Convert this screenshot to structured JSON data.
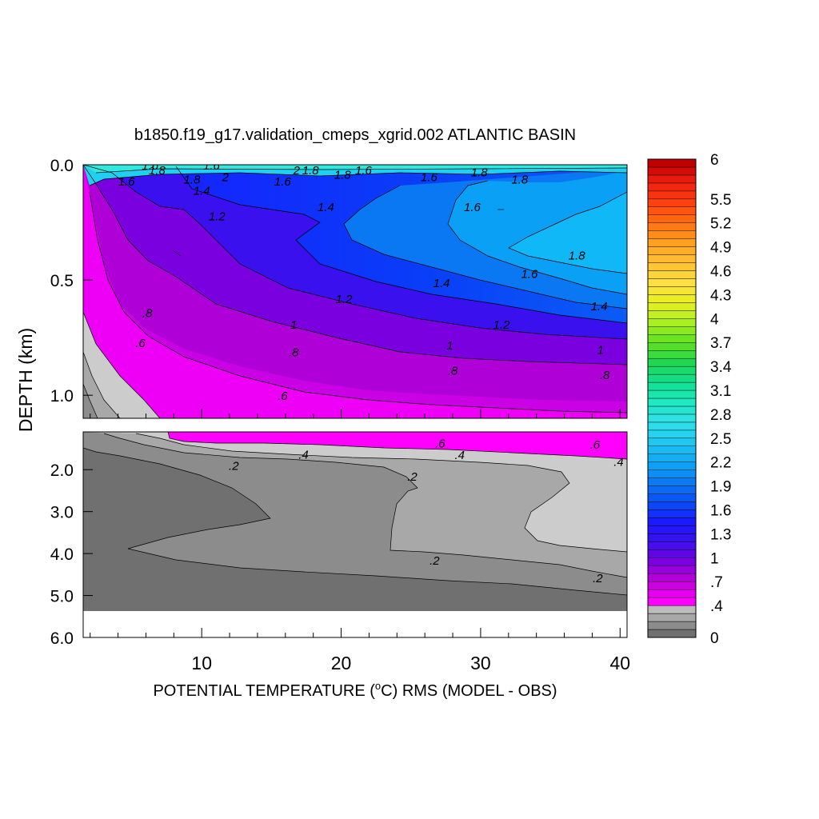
{
  "chart_data": {
    "type": "heatmap",
    "title": "b1850.f19_g17.validation_cmeps_xgrid.002 ATLANTIC BASIN",
    "xlabel_main": "POTENTIAL TEMPERATURE (",
    "xlabel_sup": "o",
    "xlabel_end": "C) RMS (MODEL - OBS)",
    "ylabel": "DEPTH (km)",
    "x_ticks": [
      "10",
      "20",
      "30",
      "40"
    ],
    "x_tick_values": [
      10,
      20,
      30,
      40
    ],
    "xlim": [
      1.5,
      40.5
    ],
    "upper_panel": {
      "ylim": [
        0.0,
        1.1
      ],
      "y_ticks": [
        "0.0",
        "0.5",
        "1.0"
      ],
      "y_tick_values": [
        0.0,
        0.5,
        1.0
      ]
    },
    "lower_panel": {
      "ylim": [
        1.1,
        6.0
      ],
      "y_ticks": [
        "2.0",
        "3.0",
        "4.0",
        "5.0",
        "6.0"
      ],
      "y_tick_values": [
        2.0,
        3.0,
        4.0,
        5.0,
        6.0
      ]
    },
    "colorbar": {
      "labels": [
        "6",
        "5.5",
        "5.2",
        "4.9",
        "4.6",
        "4.3",
        "4",
        "3.7",
        "3.4",
        "3.1",
        "2.8",
        "2.5",
        "2.2",
        "1.9",
        "1.6",
        "1.3",
        "1",
        ".7",
        ".4",
        "0"
      ],
      "label_values": [
        6,
        5.5,
        5.2,
        4.9,
        4.6,
        4.3,
        4.0,
        3.7,
        3.4,
        3.1,
        2.8,
        2.5,
        2.2,
        1.9,
        1.6,
        1.3,
        1.0,
        0.7,
        0.4,
        0
      ],
      "gray_levels": [
        0,
        0.1,
        0.2,
        0.3,
        0.4
      ],
      "color_min": 0.4,
      "color_max": 6.0,
      "colors": [
        "#ff00ff",
        "#c000d8",
        "#7a00e0",
        "#3a10ee",
        "#1a1aff",
        "#0a50f8",
        "#0a7cf0",
        "#10a8f5",
        "#20c8f0",
        "#30e0e8",
        "#20e8c0",
        "#10e090",
        "#20d850",
        "#60e020",
        "#a8f020",
        "#e8f020",
        "#ffe040",
        "#ffc030",
        "#ffa020",
        "#ff7010",
        "#ff4010",
        "#f02010",
        "#c00000"
      ]
    },
    "contour_labels": [
      {
        "text": "1.6",
        "x": 6.3,
        "y": 0.0,
        "panel": "upper"
      },
      {
        "text": "1.8",
        "x": 6.8,
        "y": 0.02,
        "panel": "upper"
      },
      {
        "text": "1.6",
        "x": 10.7,
        "y": 0.0,
        "panel": "upper"
      },
      {
        "text": "1.8",
        "x": 9.3,
        "y": 0.06,
        "panel": "upper"
      },
      {
        "text": "2",
        "x": 11.7,
        "y": 0.05,
        "panel": "upper"
      },
      {
        "text": "1.4",
        "x": 10.0,
        "y": 0.11,
        "panel": "upper"
      },
      {
        "text": "1.6",
        "x": 4.6,
        "y": 0.07,
        "panel": "upper"
      },
      {
        "text": "2",
        "x": 16.8,
        "y": 0.02,
        "panel": "upper"
      },
      {
        "text": "1.8",
        "x": 17.8,
        "y": 0.02,
        "panel": "upper"
      },
      {
        "text": "1.6",
        "x": 15.8,
        "y": 0.07,
        "panel": "upper"
      },
      {
        "text": "1.8",
        "x": 20.1,
        "y": 0.04,
        "panel": "upper"
      },
      {
        "text": "1.6",
        "x": 21.6,
        "y": 0.02,
        "panel": "upper"
      },
      {
        "text": "1.6",
        "x": 26.3,
        "y": 0.05,
        "panel": "upper"
      },
      {
        "text": "1.8",
        "x": 29.9,
        "y": 0.03,
        "panel": "upper"
      },
      {
        "text": "1.8",
        "x": 32.8,
        "y": 0.06,
        "panel": "upper"
      },
      {
        "text": "1.4",
        "x": 18.9,
        "y": 0.18,
        "panel": "upper"
      },
      {
        "text": "1.2",
        "x": 11.1,
        "y": 0.22,
        "panel": "upper"
      },
      {
        "text": "1.6",
        "x": 29.4,
        "y": 0.18,
        "panel": "upper"
      },
      {
        "text": "1.8",
        "x": 36.9,
        "y": 0.39,
        "panel": "upper"
      },
      {
        "text": "1.6",
        "x": 33.5,
        "y": 0.47,
        "panel": "upper"
      },
      {
        "text": "1.4",
        "x": 27.2,
        "y": 0.51,
        "panel": "upper"
      },
      {
        "text": "1.2",
        "x": 20.2,
        "y": 0.58,
        "panel": "upper"
      },
      {
        "text": "1.4",
        "x": 38.5,
        "y": 0.61,
        "panel": "upper"
      },
      {
        "text": "1",
        "x": 16.6,
        "y": 0.69,
        "panel": "upper"
      },
      {
        "text": "1.2",
        "x": 31.5,
        "y": 0.69,
        "panel": "upper"
      },
      {
        "text": ".8",
        "x": 6.1,
        "y": 0.64,
        "panel": "upper"
      },
      {
        "text": ".6",
        "x": 5.6,
        "y": 0.77,
        "panel": "upper"
      },
      {
        "text": ".8",
        "x": 16.6,
        "y": 0.81,
        "panel": "upper"
      },
      {
        "text": "1",
        "x": 27.8,
        "y": 0.78,
        "panel": "upper"
      },
      {
        "text": "1",
        "x": 38.6,
        "y": 0.8,
        "panel": "upper"
      },
      {
        "text": ".8",
        "x": 28.0,
        "y": 0.89,
        "panel": "upper"
      },
      {
        "text": ".8",
        "x": 38.9,
        "y": 0.91,
        "panel": "upper"
      },
      {
        "text": ".6",
        "x": 15.8,
        "y": 1.0,
        "panel": "upper"
      },
      {
        "text": ".6",
        "x": 27.1,
        "y": 1.36,
        "panel": "lower"
      },
      {
        "text": ".6",
        "x": 38.2,
        "y": 1.39,
        "panel": "lower"
      },
      {
        "text": ".4",
        "x": 17.3,
        "y": 1.62,
        "panel": "lower"
      },
      {
        "text": ".4",
        "x": 28.5,
        "y": 1.63,
        "panel": "lower"
      },
      {
        "text": ".4",
        "x": 39.9,
        "y": 1.8,
        "panel": "lower"
      },
      {
        "text": ".2",
        "x": 12.3,
        "y": 1.89,
        "panel": "lower"
      },
      {
        "text": ".2",
        "x": 25.1,
        "y": 2.15,
        "panel": "lower"
      },
      {
        "text": ".2",
        "x": 26.7,
        "y": 4.15,
        "panel": "lower"
      },
      {
        "text": ".2",
        "x": 38.4,
        "y": 4.57,
        "panel": "lower"
      }
    ]
  }
}
